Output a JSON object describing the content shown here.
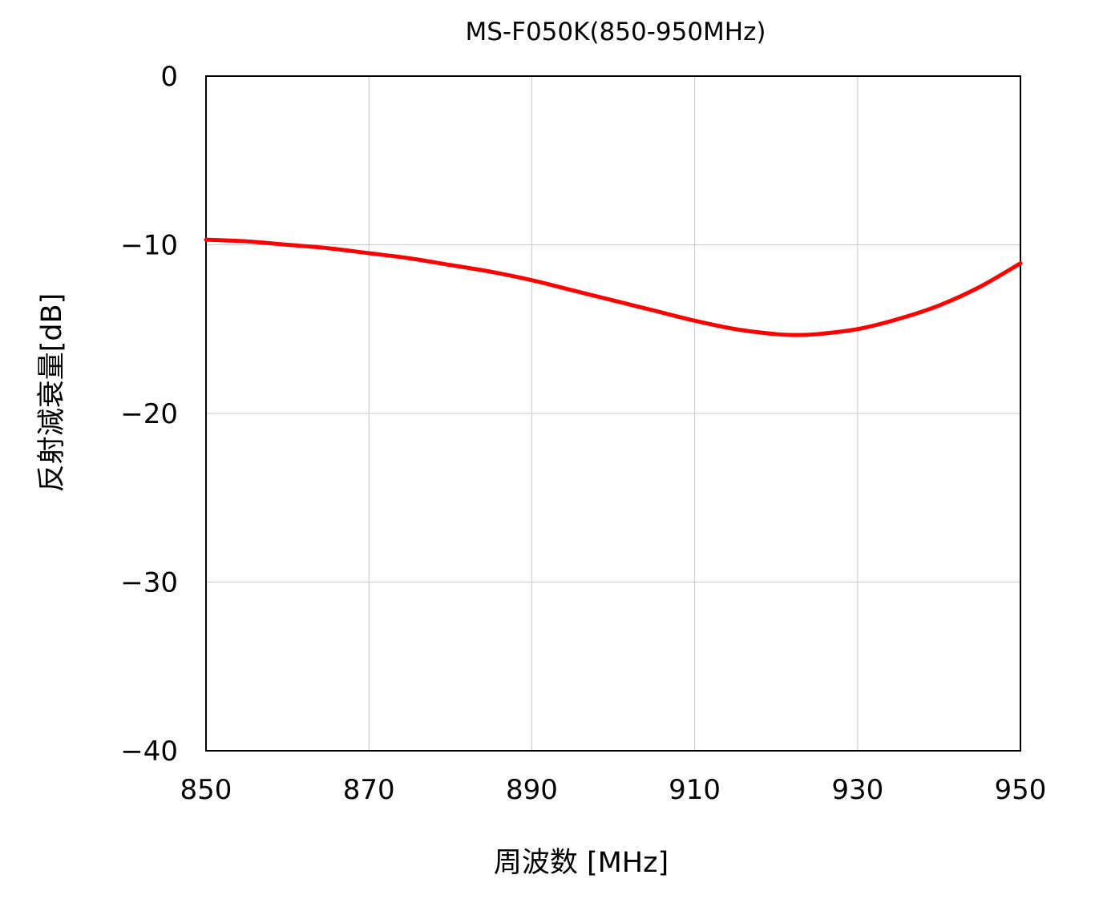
{
  "chart_data": {
    "type": "line",
    "title": "MS-F050K(850-950MHz)",
    "xlabel": "周波数 [MHz]",
    "ylabel": "反射減衰量[dB]",
    "xlim": [
      850,
      950
    ],
    "ylim": [
      -40,
      0
    ],
    "xticks": [
      850,
      870,
      890,
      910,
      930,
      950
    ],
    "yticks": [
      0,
      -10,
      -20,
      -30,
      -40
    ],
    "xtick_labels": [
      "850",
      "870",
      "890",
      "910",
      "930",
      "950"
    ],
    "ytick_labels": [
      "0",
      "−10",
      "−20",
      "−30",
      "−40"
    ],
    "grid": true,
    "legend": "none",
    "series": [
      {
        "color": "#ff0000",
        "x": [
          850,
          855,
          860,
          865,
          870,
          875,
          880,
          885,
          890,
          895,
          900,
          905,
          910,
          915,
          920,
          922.5,
          925,
          930,
          935,
          940,
          945,
          950
        ],
        "y": [
          -9.7,
          -9.8,
          -10.0,
          -10.2,
          -10.5,
          -10.8,
          -11.2,
          -11.6,
          -12.1,
          -12.7,
          -13.3,
          -13.9,
          -14.5,
          -15.0,
          -15.3,
          -15.35,
          -15.3,
          -15.0,
          -14.4,
          -13.6,
          -12.5,
          -11.1
        ]
      }
    ]
  }
}
